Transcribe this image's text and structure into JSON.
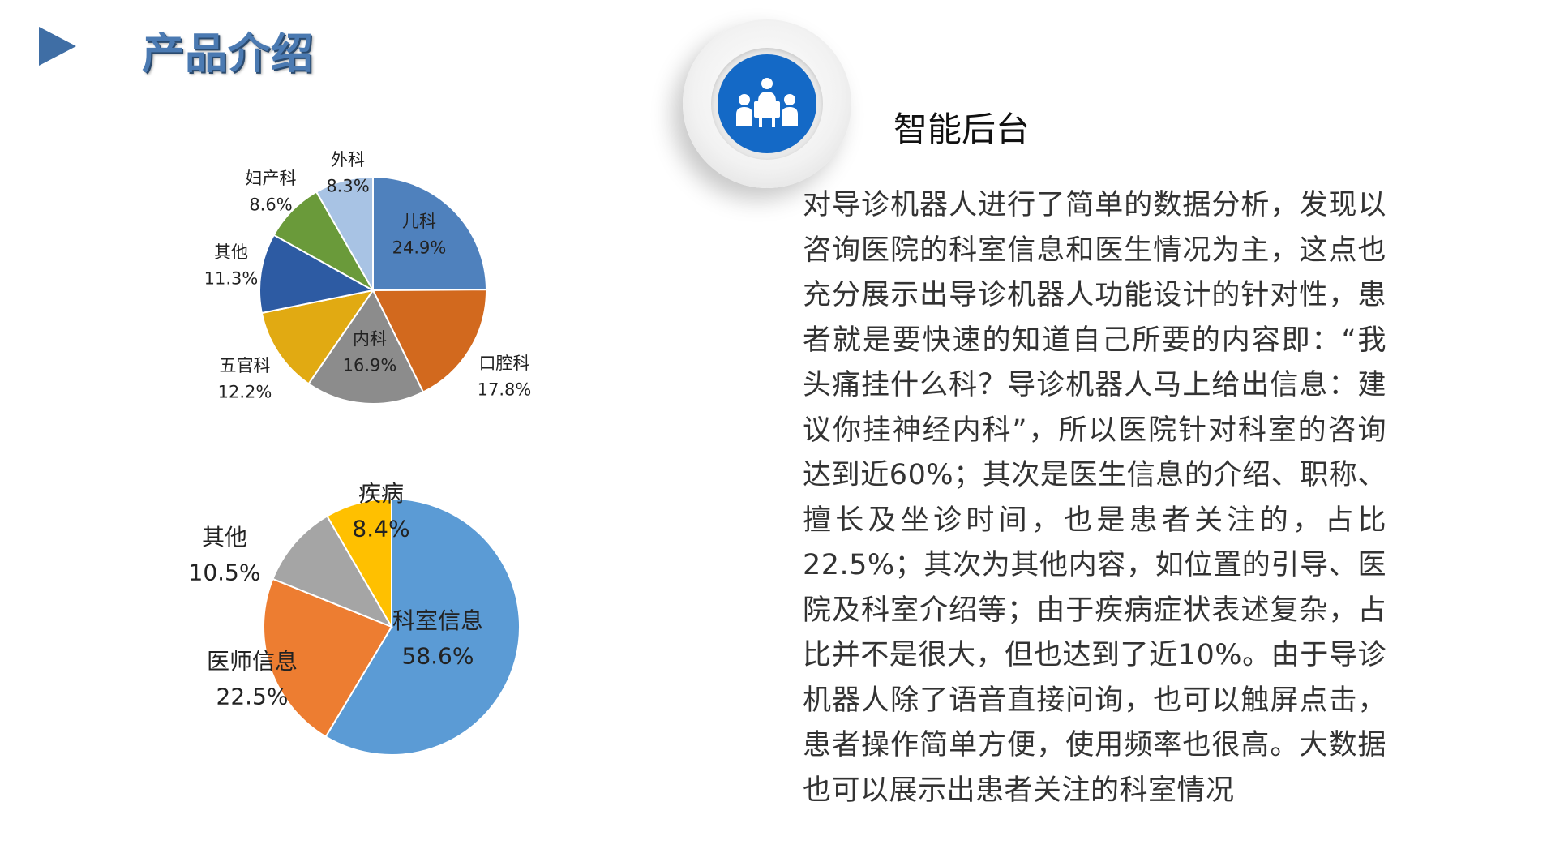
{
  "header": {
    "title": "产品介绍"
  },
  "section": {
    "title": "智能后台",
    "icon": "meeting-group-icon"
  },
  "description": "对导诊机器人进行了简单的数据分析，发现以咨询医院的科室信息和医生情况为主，这点也充分展示出导诊机器人功能设计的针对性，患者就是要快速的知道自己所要的内容即：“我头痛挂什么科？导诊机器人马上给出信息：建议你挂神经内科”，所以医院针对科室的咨询达到近60%；其次是医生信息的介绍、职称、擅长及坐诊时间，也是患者关注的，占比22.5%；其次为其他内容，如位置的引导、医院及科室介绍等；由于疾病症状表述复杂，占比并不是很大，但也达到了近10%。由于导诊机器人除了语音直接问询，也可以触屏点击，患者操作简单方便，使用频率也很高。大数据也可以展示出患者关注的科室情况",
  "colors": {
    "accent": "#1469c6",
    "arrow": "#3f6ea5",
    "title": "#4b7ab2"
  },
  "chart_data": [
    {
      "type": "pie",
      "title": "",
      "slices": [
        {
          "label": "儿科",
          "value": 24.9,
          "display": "24.9%",
          "color": "#4f81bd"
        },
        {
          "label": "口腔科",
          "value": 17.8,
          "display": "17.8%",
          "color": "#d2691e"
        },
        {
          "label": "内科",
          "value": 16.9,
          "display": "16.9%",
          "color": "#8c8c8c"
        },
        {
          "label": "五官科",
          "value": 12.2,
          "display": "12.2%",
          "color": "#e1aa12"
        },
        {
          "label": "其他",
          "value": 11.3,
          "display": "11.3%",
          "color": "#2d5ba3"
        },
        {
          "label": "妇产科",
          "value": 8.6,
          "display": "8.6%",
          "color": "#6a9a3a"
        },
        {
          "label": "外科",
          "value": 8.3,
          "display": "8.3%",
          "color": "#a8c3e4"
        }
      ]
    },
    {
      "type": "pie",
      "title": "",
      "slices": [
        {
          "label": "科室信息",
          "value": 58.6,
          "display": "58.6%",
          "color": "#5b9bd5"
        },
        {
          "label": "医师信息",
          "value": 22.5,
          "display": "22.5%",
          "color": "#ed7d31"
        },
        {
          "label": "其他",
          "value": 10.5,
          "display": "10.5%",
          "color": "#a5a5a5"
        },
        {
          "label": "疾病",
          "value": 8.4,
          "display": "8.4%",
          "color": "#ffc000"
        }
      ]
    }
  ]
}
